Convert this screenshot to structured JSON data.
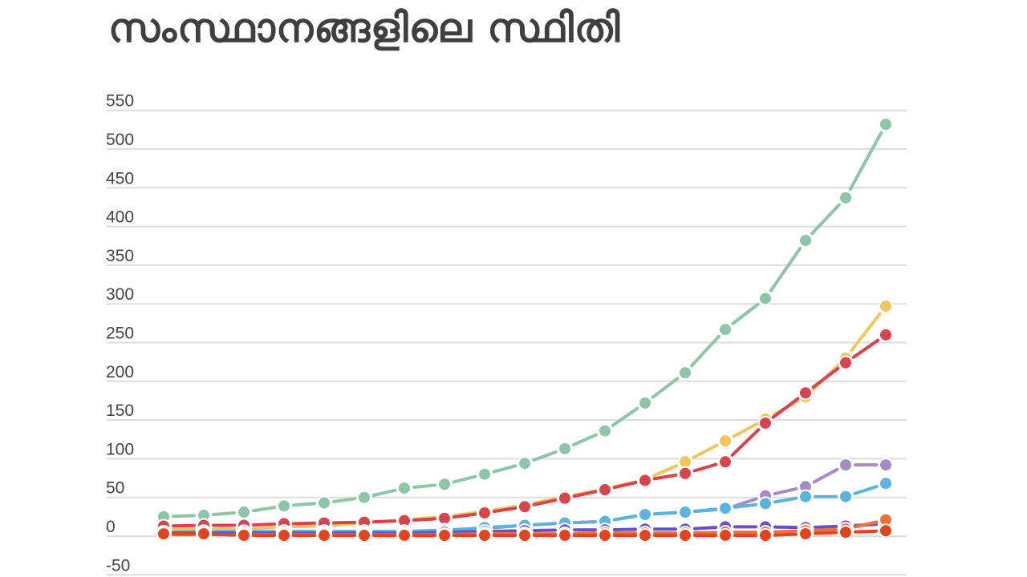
{
  "header": {
    "title": "സംസ്ഥാനങ്ങളിലെ സ്ഥിതി"
  },
  "chart_data": {
    "type": "line",
    "title": "സംസ്ഥാനങ്ങളിലെ സ്ഥിതി",
    "xlabel": "",
    "ylabel": "",
    "ylim": [
      -50,
      550
    ],
    "yticks": [
      550,
      500,
      450,
      400,
      350,
      300,
      250,
      200,
      150,
      100,
      50,
      0,
      -50
    ],
    "grid": true,
    "legend": "none",
    "x": [
      1,
      2,
      3,
      4,
      5,
      6,
      7,
      8,
      9,
      10,
      11,
      12,
      13,
      14,
      15,
      16,
      17,
      18,
      19
    ],
    "series": [
      {
        "name": "green",
        "color": "#8cc5a8",
        "values": [
          25,
          27,
          31,
          39,
          43,
          50,
          62,
          67,
          80,
          94,
          113,
          136,
          172,
          211,
          267,
          307,
          382,
          437,
          532
        ]
      },
      {
        "name": "yellow",
        "color": "#f0c75e",
        "values": [
          9,
          9,
          9,
          12,
          13,
          17,
          21,
          25,
          32,
          40,
          51,
          61,
          73,
          96,
          123,
          151,
          180,
          230,
          297
        ]
      },
      {
        "name": "red",
        "color": "#d9434b",
        "values": [
          13,
          14,
          14,
          16,
          17,
          18,
          20,
          23,
          30,
          38,
          49,
          60,
          72,
          81,
          96,
          146,
          185,
          224,
          260
        ]
      },
      {
        "name": "purple",
        "color": "#a58cc9",
        "values": [
          5,
          5,
          5,
          6,
          6,
          6,
          6,
          8,
          10,
          14,
          17,
          19,
          28,
          31,
          35,
          52,
          64,
          92,
          92
        ]
      },
      {
        "name": "blue",
        "color": "#5ab4e0",
        "values": [
          5,
          6,
          6,
          6,
          6,
          6,
          6,
          7,
          11,
          14,
          17,
          19,
          28,
          31,
          36,
          42,
          51,
          51,
          68
        ]
      },
      {
        "name": "indigo",
        "color": "#6a4fc8",
        "values": [
          4,
          4,
          4,
          4,
          4,
          4,
          4,
          5,
          6,
          7,
          8,
          8,
          9,
          9,
          12,
          12,
          11,
          13,
          16
        ]
      },
      {
        "name": "orange",
        "color": "#f0703c",
        "values": [
          2,
          2,
          2,
          2,
          2,
          2,
          2,
          2,
          3,
          3,
          3,
          4,
          4,
          4,
          5,
          5,
          7,
          9,
          21
        ]
      },
      {
        "name": "dark-orange",
        "color": "#e2441f",
        "values": [
          3,
          3,
          1,
          1,
          1,
          1,
          1,
          1,
          1,
          1,
          1,
          1,
          1,
          1,
          1,
          1,
          3,
          5,
          7
        ]
      }
    ]
  }
}
